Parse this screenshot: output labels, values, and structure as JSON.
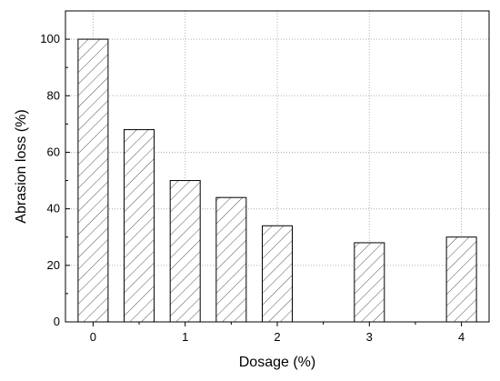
{
  "chart_data": {
    "type": "bar",
    "title": "",
    "xlabel": "Dosage (%)",
    "ylabel": "Abrasion loss (%)",
    "x": [
      0,
      0.5,
      1,
      1.5,
      2,
      3,
      4
    ],
    "values": [
      100,
      68,
      50,
      44,
      34,
      28,
      30
    ],
    "xlim": [
      -0.3,
      4.3
    ],
    "xticks": [
      0,
      1,
      2,
      3,
      4
    ],
    "ylim": [
      0,
      110
    ],
    "yticks": [
      0,
      20,
      40,
      60,
      80,
      100
    ],
    "grid": true,
    "bar_fill": "diagonal-hatch",
    "bar_color": "#333333",
    "grid_color": "#b0b0b0"
  }
}
